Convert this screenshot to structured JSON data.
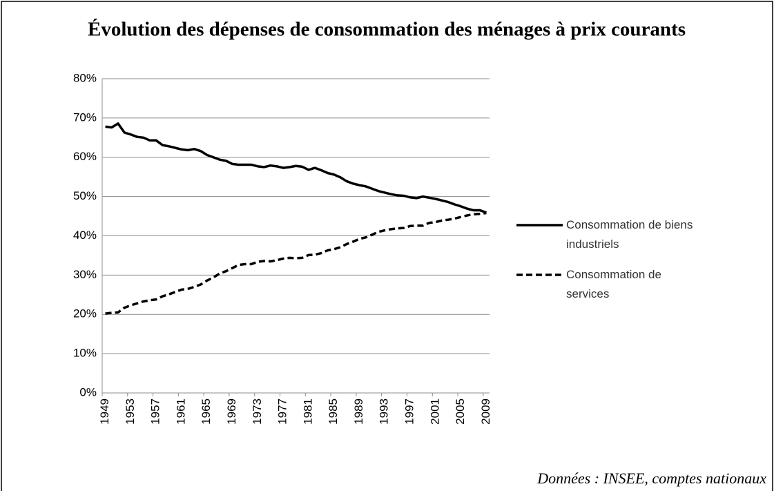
{
  "chart_data": {
    "type": "line",
    "title": "Évolution des dépenses de consommation des ménages à prix courants",
    "source": "Données : INSEE, comptes nationaux",
    "categories": [
      "1949",
      null,
      null,
      null,
      "1953",
      null,
      null,
      null,
      "1957",
      null,
      null,
      null,
      "1961",
      null,
      null,
      null,
      "1965",
      null,
      null,
      null,
      "1969",
      null,
      null,
      null,
      "1973",
      null,
      null,
      null,
      "1977",
      null,
      null,
      null,
      "1981",
      null,
      null,
      null,
      "1985",
      null,
      null,
      null,
      "1989",
      null,
      null,
      null,
      "1993",
      null,
      null,
      null,
      "1997",
      null,
      null,
      null,
      "2001",
      null,
      null,
      null,
      "2005",
      null,
      null,
      null,
      "2009"
    ],
    "series": [
      {
        "name": "Consommation de biens industriels",
        "color": "#000000",
        "dash": false,
        "values": [
          67.8,
          67.6,
          68.6,
          66.3,
          65.8,
          65.2,
          65.0,
          64.3,
          64.3,
          63.1,
          62.8,
          62.4,
          62.0,
          61.8,
          62.1,
          61.6,
          60.6,
          60.0,
          59.4,
          59.1,
          58.3,
          58.1,
          58.1,
          58.1,
          57.7,
          57.5,
          57.9,
          57.7,
          57.3,
          57.5,
          57.8,
          57.6,
          56.8,
          57.3,
          56.7,
          56.0,
          55.6,
          54.9,
          53.9,
          53.3,
          52.9,
          52.6,
          52.0,
          51.4,
          51.0,
          50.6,
          50.3,
          50.2,
          49.8,
          49.6,
          50.0,
          49.7,
          49.4,
          49.0,
          48.6,
          48.0,
          47.5,
          46.9,
          46.5,
          46.5,
          45.9
        ]
      },
      {
        "name": "Consommation de services",
        "color": "#000000",
        "dash": true,
        "values": [
          20.2,
          20.4,
          20.5,
          21.7,
          22.3,
          22.8,
          23.3,
          23.6,
          23.8,
          24.6,
          25.1,
          25.7,
          26.3,
          26.5,
          27.0,
          27.6,
          28.6,
          29.4,
          30.4,
          31.0,
          31.8,
          32.6,
          32.8,
          32.8,
          33.4,
          33.6,
          33.5,
          33.8,
          34.2,
          34.4,
          34.3,
          34.4,
          35.1,
          35.2,
          35.6,
          36.3,
          36.6,
          37.1,
          37.9,
          38.5,
          39.2,
          39.6,
          40.3,
          41.0,
          41.4,
          41.7,
          41.9,
          42.0,
          42.5,
          42.6,
          42.6,
          43.3,
          43.5,
          43.9,
          44.1,
          44.4,
          44.8,
          45.2,
          45.5,
          45.6,
          45.8
        ]
      }
    ],
    "ylim": [
      0,
      80
    ],
    "yticks": [
      {
        "value": 0,
        "label": "0%"
      },
      {
        "value": 10,
        "label": "10%"
      },
      {
        "value": 20,
        "label": "20%"
      },
      {
        "value": 30,
        "label": "30%"
      },
      {
        "value": 40,
        "label": "40%"
      },
      {
        "value": 50,
        "label": "50%"
      },
      {
        "value": 60,
        "label": "60%"
      },
      {
        "value": 70,
        "label": "70%"
      },
      {
        "value": 80,
        "label": "80%"
      }
    ],
    "grid": true,
    "legend": "right"
  }
}
